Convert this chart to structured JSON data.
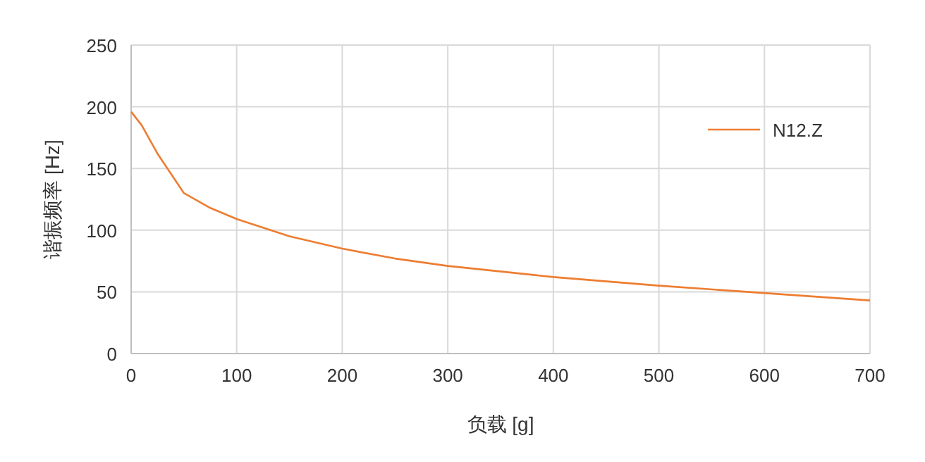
{
  "chart_data": {
    "type": "line",
    "xlabel": "负载 [g]",
    "ylabel": "谐振频率 [Hz]",
    "xlim": [
      0,
      700
    ],
    "xticks": [
      0,
      100,
      200,
      300,
      400,
      500,
      600,
      700
    ],
    "ylim": [
      0,
      250
    ],
    "yticks": [
      0,
      50,
      100,
      150,
      200,
      250
    ],
    "grid": true,
    "legend": "top right",
    "marker": "none",
    "line_style": "solid",
    "series": [
      {
        "name": "N12.Z",
        "color": "#ed7d31",
        "x": [
          0,
          10,
          25,
          50,
          75,
          100,
          150,
          200,
          250,
          300,
          400,
          500,
          600,
          700
        ],
        "values": [
          196,
          185,
          162,
          130,
          118,
          109,
          95,
          85,
          77,
          71,
          62,
          55,
          49,
          43
        ]
      }
    ]
  }
}
